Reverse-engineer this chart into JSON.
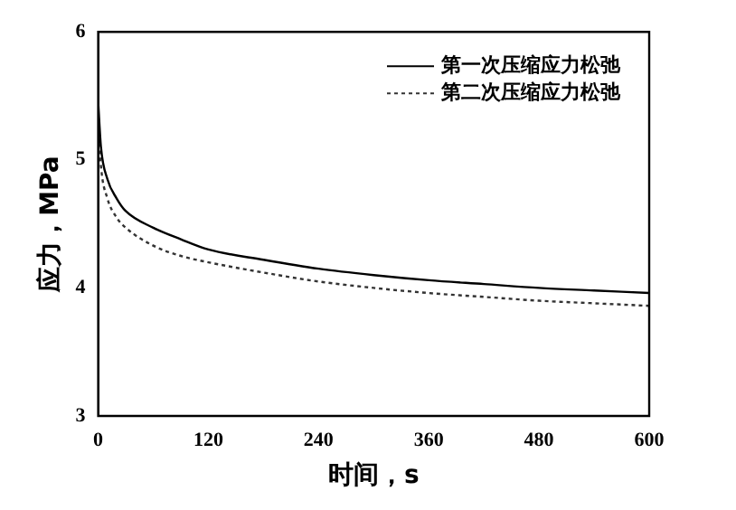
{
  "chart_data": {
    "type": "line",
    "xlabel": "时间，s",
    "ylabel": "应力，MPa",
    "xlim": [
      0,
      600
    ],
    "xticks": [
      0,
      120,
      240,
      360,
      480,
      600
    ],
    "ylim": [
      3,
      6
    ],
    "yticks": [
      3,
      4,
      5,
      6
    ],
    "grid": false,
    "legend": "top right",
    "marker": "none",
    "series": [
      {
        "name": "第一次压缩应力松弛",
        "color": "#000000",
        "line_style": "solid",
        "x": [
          0,
          3,
          10,
          20,
          30,
          60,
          90,
          120,
          180,
          240,
          300,
          360,
          420,
          480,
          540,
          600
        ],
        "values": [
          5.45,
          5.1,
          4.85,
          4.7,
          4.6,
          4.47,
          4.38,
          4.3,
          4.22,
          4.15,
          4.1,
          4.06,
          4.03,
          4.0,
          3.98,
          3.96
        ]
      },
      {
        "name": "第二次压缩应力松弛",
        "color": "#333333",
        "line_style": "dotted",
        "x": [
          0,
          3,
          10,
          20,
          30,
          60,
          90,
          120,
          180,
          240,
          300,
          360,
          420,
          480,
          540,
          600
        ],
        "values": [
          5.3,
          4.95,
          4.7,
          4.55,
          4.47,
          4.33,
          4.25,
          4.2,
          4.12,
          4.05,
          4.0,
          3.96,
          3.93,
          3.9,
          3.88,
          3.86
        ]
      }
    ]
  }
}
